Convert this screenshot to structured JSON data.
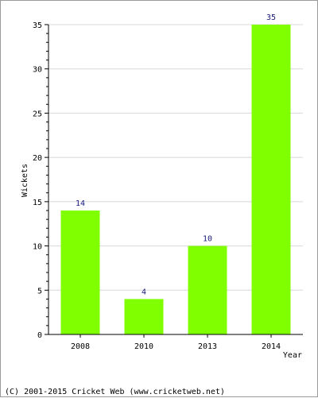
{
  "chart_data": {
    "type": "bar",
    "categories": [
      "2008",
      "2010",
      "2013",
      "2014"
    ],
    "values": [
      14,
      4,
      10,
      35
    ],
    "data_labels": [
      "14",
      "4",
      "10",
      "35"
    ],
    "title": "",
    "xlabel": "Year",
    "ylabel": "Wickets",
    "ylim": [
      0,
      35
    ],
    "yticks": [
      "0",
      "5",
      "10",
      "15",
      "20",
      "25",
      "30",
      "35"
    ],
    "grid": true,
    "colors": {
      "bar": "#80ff00",
      "label": "#1a1a80",
      "axis": "#000000",
      "grid": "#d8d8d8"
    }
  },
  "footer": {
    "copyright": "(C) 2001-2015 Cricket Web (www.cricketweb.net)"
  }
}
